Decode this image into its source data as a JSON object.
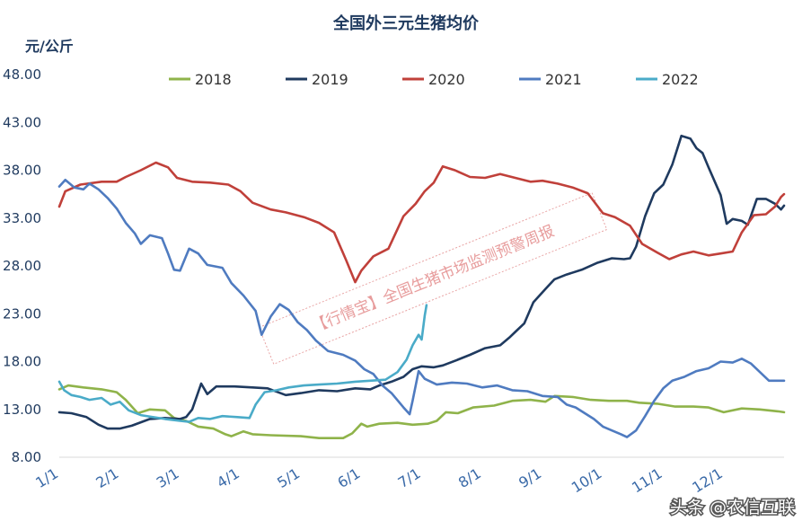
{
  "chart_data": {
    "type": "line",
    "title": "全国外三元生猪均价",
    "ylabel": "元/公斤",
    "ylim": [
      8,
      48
    ],
    "yticks": [
      "8.00",
      "13.00",
      "18.00",
      "23.00",
      "28.00",
      "33.00",
      "38.00",
      "43.00",
      "48.00"
    ],
    "xlim": [
      0,
      12
    ],
    "xticks": [
      {
        "label": "1/1",
        "x": 0
      },
      {
        "label": "2/1",
        "x": 1
      },
      {
        "label": "3/1",
        "x": 2
      },
      {
        "label": "4/1",
        "x": 3
      },
      {
        "label": "5/1",
        "x": 4
      },
      {
        "label": "6/1",
        "x": 5
      },
      {
        "label": "7/1",
        "x": 6
      },
      {
        "label": "8/1",
        "x": 7
      },
      {
        "label": "9/1",
        "x": 8
      },
      {
        "label": "10/1",
        "x": 9
      },
      {
        "label": "11/1",
        "x": 10
      },
      {
        "label": "12/1",
        "x": 11
      }
    ],
    "series": [
      {
        "name": "2018",
        "color": "#8fb34a",
        "points": [
          [
            0,
            15.1
          ],
          [
            0.15,
            15.5
          ],
          [
            0.4,
            15.3
          ],
          [
            0.7,
            15.1
          ],
          [
            0.95,
            14.8
          ],
          [
            1.1,
            14.0
          ],
          [
            1.3,
            12.6
          ],
          [
            1.5,
            13.0
          ],
          [
            1.75,
            12.9
          ],
          [
            1.9,
            12.1
          ],
          [
            2.1,
            11.8
          ],
          [
            2.3,
            11.2
          ],
          [
            2.55,
            11.0
          ],
          [
            2.75,
            10.4
          ],
          [
            2.85,
            10.2
          ],
          [
            3.05,
            10.7
          ],
          [
            3.2,
            10.4
          ],
          [
            3.5,
            10.3
          ],
          [
            4.0,
            10.2
          ],
          [
            4.3,
            10.0
          ],
          [
            4.7,
            10.0
          ],
          [
            4.85,
            10.5
          ],
          [
            5.0,
            11.5
          ],
          [
            5.1,
            11.2
          ],
          [
            5.3,
            11.5
          ],
          [
            5.6,
            11.6
          ],
          [
            5.85,
            11.4
          ],
          [
            6.1,
            11.5
          ],
          [
            6.25,
            11.8
          ],
          [
            6.4,
            12.7
          ],
          [
            6.6,
            12.6
          ],
          [
            6.85,
            13.2
          ],
          [
            7.2,
            13.4
          ],
          [
            7.5,
            13.9
          ],
          [
            7.8,
            14.0
          ],
          [
            8.05,
            13.8
          ],
          [
            8.2,
            14.4
          ],
          [
            8.5,
            14.3
          ],
          [
            8.8,
            14.0
          ],
          [
            9.1,
            13.9
          ],
          [
            9.4,
            13.9
          ],
          [
            9.6,
            13.7
          ],
          [
            9.9,
            13.6
          ],
          [
            10.2,
            13.3
          ],
          [
            10.5,
            13.3
          ],
          [
            10.75,
            13.2
          ],
          [
            11.0,
            12.7
          ],
          [
            11.3,
            13.1
          ],
          [
            11.6,
            13.0
          ],
          [
            11.9,
            12.8
          ],
          [
            12.0,
            12.7
          ]
        ]
      },
      {
        "name": "2019",
        "color": "#1f3a5f",
        "points": [
          [
            0,
            12.7
          ],
          [
            0.2,
            12.6
          ],
          [
            0.45,
            12.2
          ],
          [
            0.65,
            11.4
          ],
          [
            0.8,
            11.0
          ],
          [
            1.0,
            11.0
          ],
          [
            1.2,
            11.3
          ],
          [
            1.5,
            12.0
          ],
          [
            1.75,
            12.1
          ],
          [
            2.0,
            12.0
          ],
          [
            2.1,
            12.2
          ],
          [
            2.2,
            13.0
          ],
          [
            2.35,
            15.7
          ],
          [
            2.45,
            14.6
          ],
          [
            2.6,
            15.4
          ],
          [
            2.9,
            15.4
          ],
          [
            3.2,
            15.3
          ],
          [
            3.45,
            15.2
          ],
          [
            3.75,
            14.5
          ],
          [
            4.0,
            14.7
          ],
          [
            4.3,
            15.0
          ],
          [
            4.6,
            14.9
          ],
          [
            4.9,
            15.2
          ],
          [
            5.15,
            15.1
          ],
          [
            5.3,
            15.5
          ],
          [
            5.5,
            15.9
          ],
          [
            5.7,
            16.4
          ],
          [
            5.85,
            17.2
          ],
          [
            6.0,
            17.5
          ],
          [
            6.2,
            17.4
          ],
          [
            6.35,
            17.6
          ],
          [
            6.6,
            18.2
          ],
          [
            6.8,
            18.7
          ],
          [
            7.05,
            19.4
          ],
          [
            7.3,
            19.7
          ],
          [
            7.45,
            20.5
          ],
          [
            7.55,
            21.1
          ],
          [
            7.7,
            22.0
          ],
          [
            7.85,
            24.2
          ],
          [
            8.05,
            25.6
          ],
          [
            8.2,
            26.6
          ],
          [
            8.4,
            27.1
          ],
          [
            8.65,
            27.6
          ],
          [
            8.9,
            28.3
          ],
          [
            9.15,
            28.8
          ],
          [
            9.35,
            28.7
          ],
          [
            9.45,
            28.8
          ],
          [
            9.55,
            30.0
          ],
          [
            9.7,
            33.2
          ],
          [
            9.85,
            35.6
          ],
          [
            10.0,
            36.5
          ],
          [
            10.15,
            38.6
          ],
          [
            10.3,
            41.6
          ],
          [
            10.45,
            41.3
          ],
          [
            10.55,
            40.3
          ],
          [
            10.65,
            39.8
          ],
          [
            10.75,
            38.3
          ],
          [
            10.95,
            35.4
          ],
          [
            11.05,
            32.4
          ],
          [
            11.15,
            32.9
          ],
          [
            11.3,
            32.7
          ],
          [
            11.4,
            32.3
          ],
          [
            11.55,
            35.0
          ],
          [
            11.7,
            35.0
          ],
          [
            11.85,
            34.5
          ],
          [
            11.95,
            33.9
          ],
          [
            12.0,
            34.3
          ]
        ]
      },
      {
        "name": "2020",
        "color": "#c0403a",
        "points": [
          [
            0,
            34.2
          ],
          [
            0.1,
            35.8
          ],
          [
            0.35,
            36.5
          ],
          [
            0.7,
            36.8
          ],
          [
            0.95,
            36.8
          ],
          [
            1.1,
            37.3
          ],
          [
            1.35,
            38.0
          ],
          [
            1.6,
            38.8
          ],
          [
            1.8,
            38.3
          ],
          [
            1.95,
            37.2
          ],
          [
            2.2,
            36.8
          ],
          [
            2.5,
            36.7
          ],
          [
            2.8,
            36.5
          ],
          [
            3.0,
            35.8
          ],
          [
            3.2,
            34.6
          ],
          [
            3.5,
            33.9
          ],
          [
            3.75,
            33.6
          ],
          [
            4.05,
            33.1
          ],
          [
            4.3,
            32.5
          ],
          [
            4.55,
            31.5
          ],
          [
            4.75,
            28.6
          ],
          [
            4.9,
            26.3
          ],
          [
            5.0,
            27.5
          ],
          [
            5.2,
            29.0
          ],
          [
            5.45,
            29.8
          ],
          [
            5.7,
            33.2
          ],
          [
            5.9,
            34.5
          ],
          [
            6.05,
            35.8
          ],
          [
            6.2,
            36.7
          ],
          [
            6.35,
            38.4
          ],
          [
            6.55,
            38.0
          ],
          [
            6.8,
            37.3
          ],
          [
            7.05,
            37.2
          ],
          [
            7.3,
            37.6
          ],
          [
            7.55,
            37.2
          ],
          [
            7.8,
            36.8
          ],
          [
            8.0,
            36.9
          ],
          [
            8.25,
            36.6
          ],
          [
            8.5,
            36.2
          ],
          [
            8.75,
            35.6
          ],
          [
            9.0,
            33.5
          ],
          [
            9.2,
            33.1
          ],
          [
            9.45,
            32.2
          ],
          [
            9.65,
            30.3
          ],
          [
            9.9,
            29.4
          ],
          [
            10.1,
            28.7
          ],
          [
            10.3,
            29.2
          ],
          [
            10.5,
            29.5
          ],
          [
            10.75,
            29.1
          ],
          [
            10.95,
            29.3
          ],
          [
            11.15,
            29.5
          ],
          [
            11.3,
            31.5
          ],
          [
            11.5,
            33.3
          ],
          [
            11.7,
            33.4
          ],
          [
            11.85,
            34.2
          ],
          [
            11.95,
            35.2
          ],
          [
            12.0,
            35.5
          ]
        ]
      },
      {
        "name": "2021",
        "color": "#4f7bc0",
        "points": [
          [
            0,
            36.3
          ],
          [
            0.1,
            37.0
          ],
          [
            0.25,
            36.2
          ],
          [
            0.4,
            36.0
          ],
          [
            0.5,
            36.6
          ],
          [
            0.65,
            36.0
          ],
          [
            0.8,
            35.1
          ],
          [
            0.95,
            34.0
          ],
          [
            1.1,
            32.5
          ],
          [
            1.25,
            31.4
          ],
          [
            1.35,
            30.3
          ],
          [
            1.5,
            31.2
          ],
          [
            1.7,
            30.9
          ],
          [
            1.8,
            29.3
          ],
          [
            1.9,
            27.6
          ],
          [
            2.0,
            27.5
          ],
          [
            2.15,
            29.8
          ],
          [
            2.3,
            29.3
          ],
          [
            2.45,
            28.1
          ],
          [
            2.7,
            27.8
          ],
          [
            2.85,
            26.2
          ],
          [
            3.05,
            24.9
          ],
          [
            3.25,
            23.3
          ],
          [
            3.35,
            20.8
          ],
          [
            3.5,
            22.7
          ],
          [
            3.65,
            24.0
          ],
          [
            3.8,
            23.4
          ],
          [
            3.95,
            22.1
          ],
          [
            4.1,
            21.3
          ],
          [
            4.25,
            20.2
          ],
          [
            4.45,
            19.1
          ],
          [
            4.7,
            18.7
          ],
          [
            4.9,
            18.1
          ],
          [
            5.05,
            17.2
          ],
          [
            5.2,
            16.7
          ],
          [
            5.35,
            15.5
          ],
          [
            5.5,
            14.7
          ],
          [
            5.7,
            13.2
          ],
          [
            5.8,
            12.5
          ],
          [
            5.85,
            13.9
          ],
          [
            5.95,
            17.0
          ],
          [
            6.05,
            16.2
          ],
          [
            6.25,
            15.6
          ],
          [
            6.5,
            15.8
          ],
          [
            6.75,
            15.7
          ],
          [
            7.0,
            15.3
          ],
          [
            7.25,
            15.5
          ],
          [
            7.5,
            15.0
          ],
          [
            7.75,
            14.9
          ],
          [
            8.0,
            14.4
          ],
          [
            8.25,
            14.3
          ],
          [
            8.4,
            13.5
          ],
          [
            8.55,
            13.2
          ],
          [
            8.7,
            12.6
          ],
          [
            8.85,
            12.0
          ],
          [
            9.0,
            11.2
          ],
          [
            9.15,
            10.8
          ],
          [
            9.3,
            10.4
          ],
          [
            9.4,
            10.1
          ],
          [
            9.55,
            10.8
          ],
          [
            9.7,
            12.3
          ],
          [
            9.85,
            13.9
          ],
          [
            10.0,
            15.2
          ],
          [
            10.15,
            16.0
          ],
          [
            10.35,
            16.4
          ],
          [
            10.55,
            17.0
          ],
          [
            10.75,
            17.3
          ],
          [
            10.95,
            18.0
          ],
          [
            11.15,
            17.9
          ],
          [
            11.3,
            18.3
          ],
          [
            11.45,
            17.8
          ],
          [
            11.6,
            16.9
          ],
          [
            11.75,
            16.0
          ],
          [
            11.9,
            16.0
          ],
          [
            12.0,
            16.0
          ]
        ]
      },
      {
        "name": "2022",
        "color": "#4aabc8",
        "points": [
          [
            0,
            15.9
          ],
          [
            0.08,
            15.0
          ],
          [
            0.2,
            14.5
          ],
          [
            0.35,
            14.3
          ],
          [
            0.5,
            14.0
          ],
          [
            0.7,
            14.2
          ],
          [
            0.85,
            13.5
          ],
          [
            1.0,
            13.8
          ],
          [
            1.15,
            12.9
          ],
          [
            1.35,
            12.4
          ],
          [
            1.55,
            12.2
          ],
          [
            1.75,
            12.0
          ],
          [
            2.0,
            11.8
          ],
          [
            2.15,
            11.7
          ],
          [
            2.3,
            12.1
          ],
          [
            2.5,
            12.0
          ],
          [
            2.7,
            12.3
          ],
          [
            2.95,
            12.2
          ],
          [
            3.15,
            12.1
          ],
          [
            3.25,
            13.5
          ],
          [
            3.4,
            14.8
          ],
          [
            3.6,
            15.0
          ],
          [
            3.8,
            15.3
          ],
          [
            4.05,
            15.5
          ],
          [
            4.3,
            15.6
          ],
          [
            4.6,
            15.7
          ],
          [
            4.9,
            15.9
          ],
          [
            5.15,
            16.0
          ],
          [
            5.4,
            16.1
          ],
          [
            5.6,
            16.9
          ],
          [
            5.75,
            18.2
          ],
          [
            5.85,
            19.7
          ],
          [
            5.95,
            20.8
          ],
          [
            6.0,
            20.3
          ],
          [
            6.05,
            22.8
          ],
          [
            6.08,
            23.9
          ]
        ]
      }
    ],
    "watermark": "【行情宝】全国生猪市场监测预警周报",
    "credit": "头条 @农信互联"
  }
}
